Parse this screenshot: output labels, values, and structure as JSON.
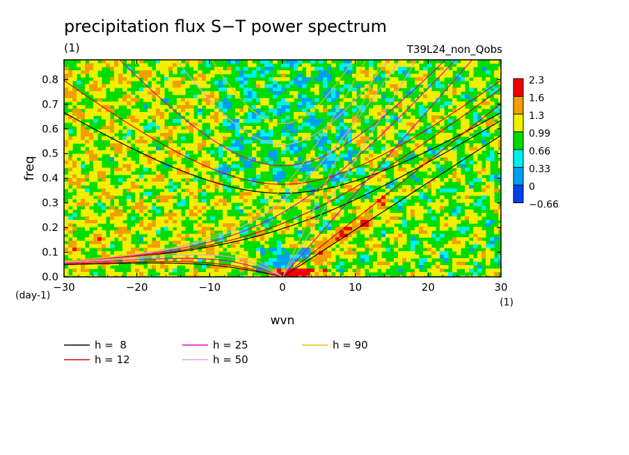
{
  "chart_data": {
    "type": "heatmap",
    "title": "precipitation flux S−T power spectrum",
    "subtitle_left": "(1)",
    "subtitle_right": "T39L24_non_Qobs",
    "xlabel": "wvn",
    "ylabel": "freq",
    "x_unit_label": "(1)",
    "y_unit_label": "(day-1)",
    "xlim": [
      -30,
      30
    ],
    "ylim": [
      0,
      0.88
    ],
    "x_ticks": [
      -30,
      -20,
      -10,
      0,
      10,
      20,
      30
    ],
    "x_tick_labels": [
      "−30",
      "−20",
      "−10",
      "0",
      "10",
      "20",
      "30"
    ],
    "y_ticks": [
      0,
      0.1,
      0.2,
      0.3,
      0.4,
      0.5,
      0.6,
      0.7,
      0.8
    ],
    "y_tick_labels": [
      "0.0",
      "0.1",
      "0.2",
      "0.3",
      "0.4",
      "0.5",
      "0.6",
      "0.7",
      "0.8"
    ],
    "colorbar": {
      "levels": [
        {
          "label": "2.3",
          "color": "#f00000"
        },
        {
          "label": "1.6",
          "color": "#f0a000"
        },
        {
          "label": "1.3",
          "color": "#f0f000"
        },
        {
          "label": "0.99",
          "color": "#00dc00"
        },
        {
          "label": "0.66",
          "color": "#00f0f0"
        },
        {
          "label": "0.33",
          "color": "#00a0f0"
        },
        {
          "label": "0",
          "color": "#0040f0"
        },
        {
          "label": "−0.66",
          "color": ""
        }
      ]
    },
    "field_description": "Mostly green (0.66-0.99) and yellow/orange (0.99-1.6) noise with red maxima along the positive-wavenumber Kelvin wave region near freq 0-0.15; cyan patches near wvn 0, freq 0.05-0.1 and freq 0.65.",
    "dispersion_curves": [
      {
        "name": "h =  8",
        "color": "#000000",
        "equivalent_depth": 8
      },
      {
        "name": "h = 12",
        "color": "#e00000",
        "equivalent_depth": 12
      },
      {
        "name": "h = 25",
        "color": "#e000c0",
        "equivalent_depth": 25
      },
      {
        "name": "h = 50",
        "color": "#e0a0e0",
        "equivalent_depth": 50
      },
      {
        "name": "h = 90",
        "color": "#f0c000",
        "equivalent_depth": 90
      }
    ]
  }
}
